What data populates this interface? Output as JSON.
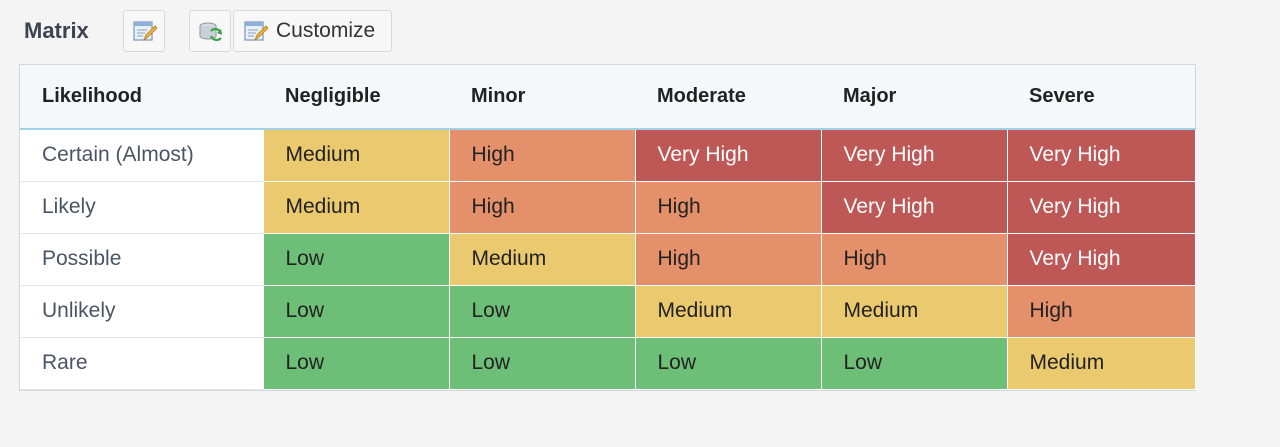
{
  "toolbar": {
    "title": "Matrix",
    "customize_label": "Customize"
  },
  "colors": {
    "Low": "#6dbf78",
    "Medium": "#ebc96e",
    "High": "#e4906b",
    "Very High": "#bd5856"
  },
  "matrix": {
    "corner_header": "Likelihood",
    "columns": [
      "Negligible",
      "Minor",
      "Moderate",
      "Major",
      "Severe"
    ],
    "rows": [
      {
        "label": "Certain (Almost)",
        "cells": [
          "Medium",
          "High",
          "Very High",
          "Very High",
          "Very High"
        ]
      },
      {
        "label": "Likely",
        "cells": [
          "Medium",
          "High",
          "High",
          "Very High",
          "Very High"
        ]
      },
      {
        "label": "Possible",
        "cells": [
          "Low",
          "Medium",
          "High",
          "High",
          "Very High"
        ]
      },
      {
        "label": "Unlikely",
        "cells": [
          "Low",
          "Low",
          "Medium",
          "Medium",
          "High"
        ]
      },
      {
        "label": "Rare",
        "cells": [
          "Low",
          "Low",
          "Low",
          "Low",
          "Medium"
        ]
      }
    ]
  }
}
